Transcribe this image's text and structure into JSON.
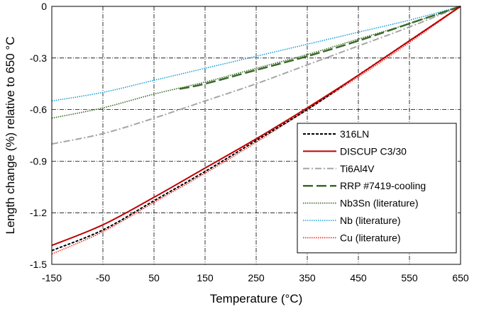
{
  "chart_data": {
    "type": "line",
    "xlabel": "Temperature (°C)",
    "ylabel": "Length change (%) relative to 650 °C",
    "xlim": [
      -150,
      650
    ],
    "ylim": [
      -1.5,
      0
    ],
    "x_ticks": [
      -150,
      -50,
      50,
      150,
      250,
      350,
      450,
      550,
      650
    ],
    "y_ticks": [
      0,
      -0.3,
      -0.6,
      -0.9,
      -1.2,
      -1.5
    ],
    "x_tick_labels": [
      "-150",
      "-50",
      "50",
      "150",
      "250",
      "350",
      "450",
      "550",
      "650"
    ],
    "y_tick_labels": [
      "0",
      "-0.3",
      "-0.6",
      "-0.9",
      "-1.2",
      "-1.5"
    ],
    "grid": true,
    "legend_position": "lower-right",
    "series": [
      {
        "name": "316LN",
        "color": "#000000",
        "dash": "short-dash",
        "x": [
          -150,
          -50,
          50,
          150,
          250,
          350,
          450,
          550,
          650
        ],
        "y": [
          -1.42,
          -1.3,
          -1.13,
          -0.96,
          -0.78,
          -0.6,
          -0.4,
          -0.2,
          0
        ]
      },
      {
        "name": "DISCUP C3/30",
        "color": "#c00000",
        "dash": "solid",
        "x": [
          -150,
          -50,
          50,
          150,
          250,
          350,
          450,
          550,
          650
        ],
        "y": [
          -1.39,
          -1.27,
          -1.11,
          -0.94,
          -0.77,
          -0.59,
          -0.4,
          -0.2,
          0
        ]
      },
      {
        "name": "Ti6Al4V",
        "color": "#a6a6a6",
        "dash": "dash-dot",
        "x": [
          -150,
          -50,
          50,
          150,
          250,
          350,
          450,
          550,
          650
        ],
        "y": [
          -0.8,
          -0.74,
          -0.65,
          -0.55,
          -0.45,
          -0.34,
          -0.23,
          -0.12,
          0
        ]
      },
      {
        "name": "RRP #7419-cooling",
        "color": "#3a6a28",
        "dash": "long-dash",
        "x": [
          100,
          150,
          250,
          350,
          450,
          550,
          650
        ],
        "y": [
          -0.48,
          -0.45,
          -0.37,
          -0.29,
          -0.2,
          -0.1,
          0
        ]
      },
      {
        "name": "Nb3Sn (literature)",
        "color": "#3a6a28",
        "dash": "dotted",
        "x": [
          -150,
          -50,
          50,
          150,
          250,
          350,
          450,
          550,
          650
        ],
        "y": [
          -0.65,
          -0.59,
          -0.51,
          -0.44,
          -0.36,
          -0.28,
          -0.19,
          -0.1,
          0
        ]
      },
      {
        "name": "Nb (literature)",
        "color": "#1f9fd8",
        "dash": "dotted",
        "x": [
          -150,
          -50,
          50,
          150,
          250,
          350,
          450,
          550,
          650
        ],
        "y": [
          -0.55,
          -0.5,
          -0.43,
          -0.36,
          -0.29,
          -0.22,
          -0.15,
          -0.08,
          0
        ]
      },
      {
        "name": "Cu (literature)",
        "color": "#ff2020",
        "dash": "dotted",
        "x": [
          -150,
          -50,
          50,
          150,
          250,
          350,
          450,
          550,
          650
        ],
        "y": [
          -1.44,
          -1.31,
          -1.14,
          -0.97,
          -0.79,
          -0.6,
          -0.41,
          -0.21,
          0
        ]
      }
    ]
  }
}
